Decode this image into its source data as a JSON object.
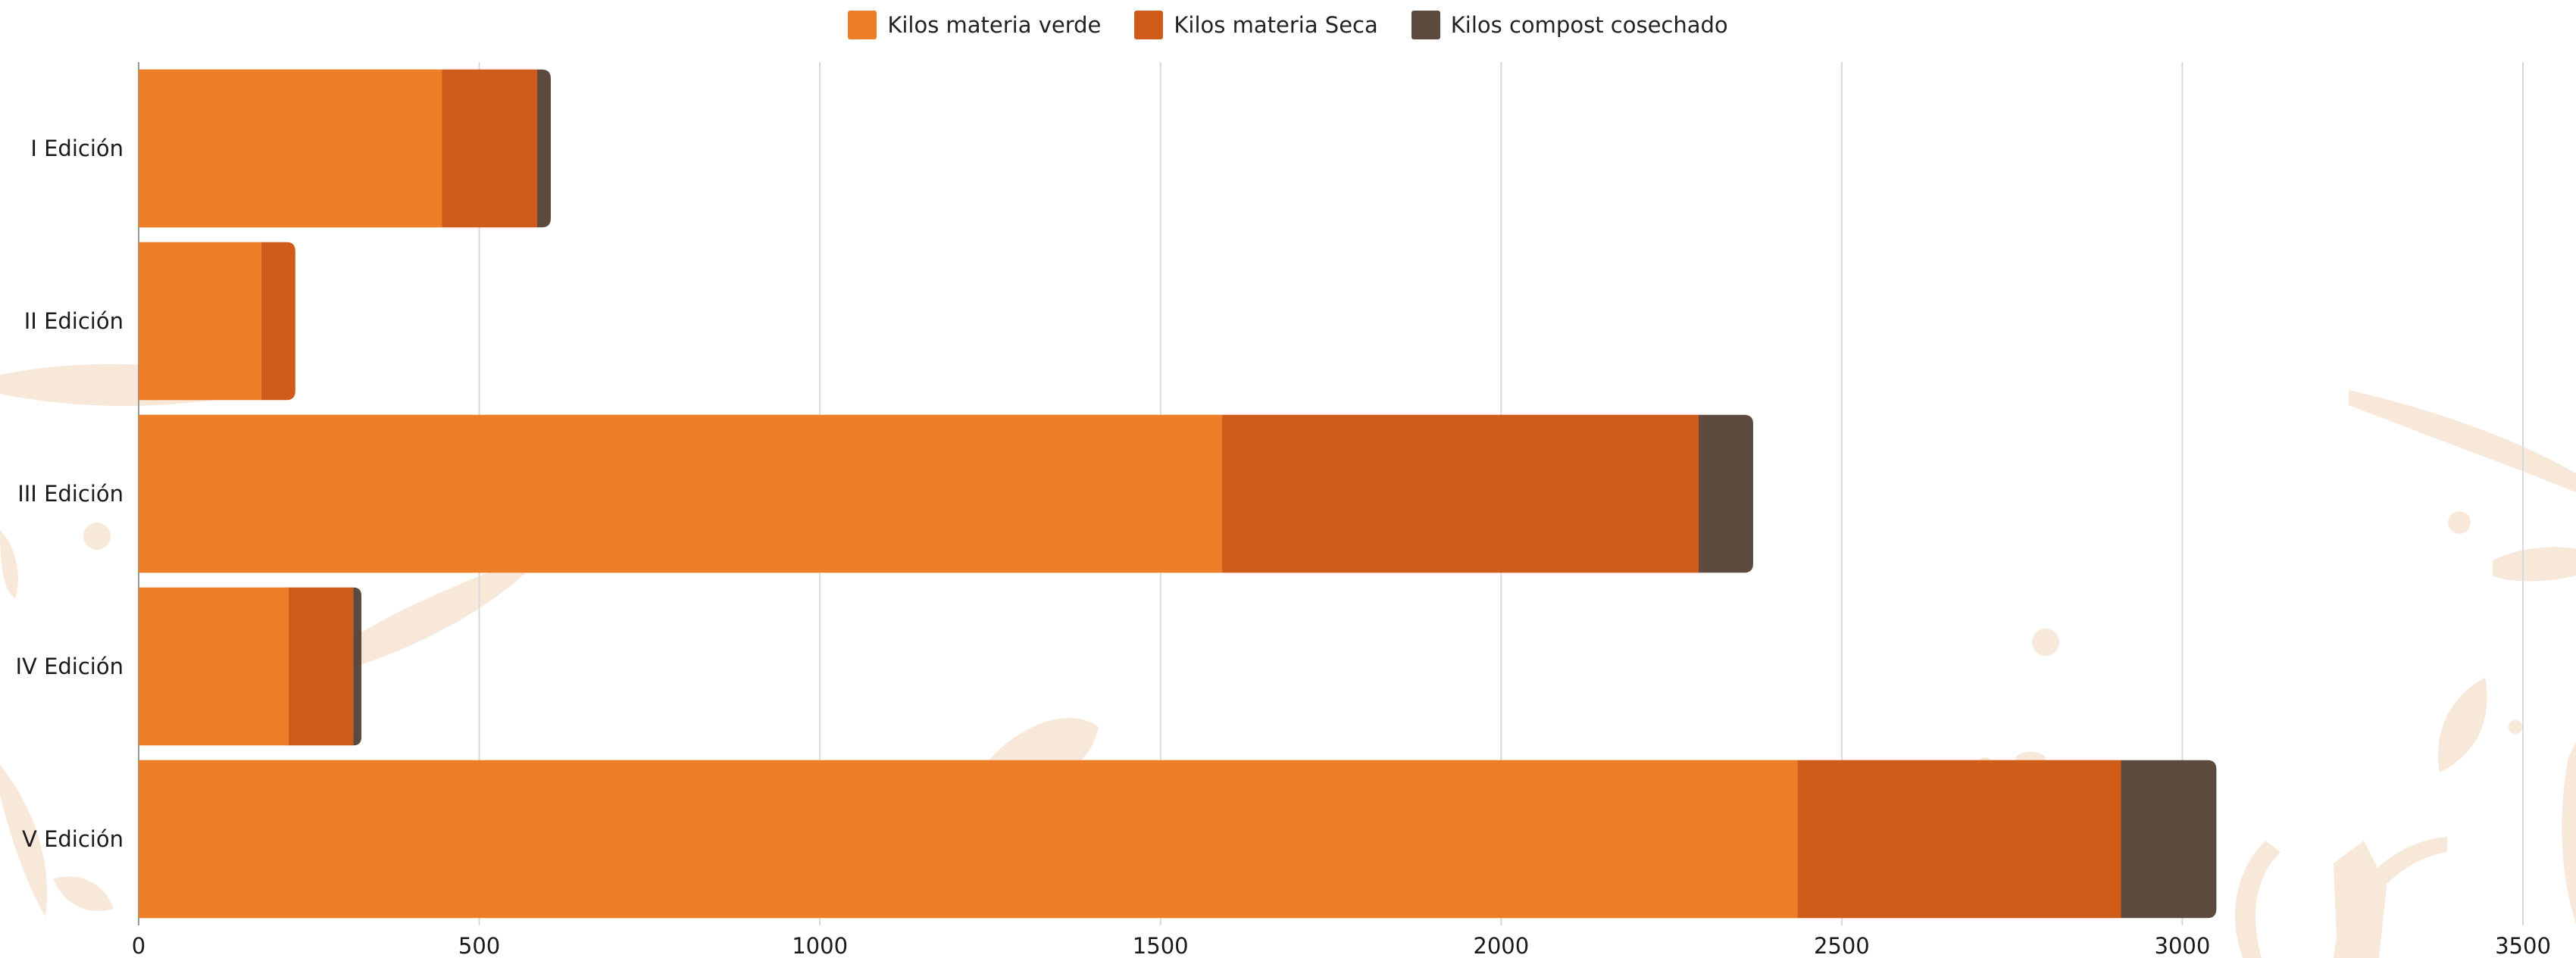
{
  "chart_data": {
    "type": "bar",
    "orientation": "horizontal",
    "stacked": true,
    "categories": [
      "I Edición",
      "II Edición",
      "III Edición",
      "IV Edición",
      "V Edición"
    ],
    "series": [
      {
        "name": "Kilos materia verde",
        "color": "#ee7d27",
        "values": [
          445,
          180,
          1590,
          220,
          2435
        ]
      },
      {
        "name": "Kilos materia Seca",
        "color": "#d05c19",
        "values": [
          140,
          50,
          700,
          95,
          475
        ]
      },
      {
        "name": "Kilos compost cosechado",
        "color": "#5c4a3e",
        "values": [
          20,
          0,
          80,
          12,
          140
        ]
      }
    ],
    "xlim": [
      0,
      3500
    ],
    "xticks": [
      "0",
      "500",
      "1000",
      "1500",
      "2000",
      "2500",
      "3000",
      "3500"
    ],
    "grid": true,
    "legend_position": "top-center"
  }
}
